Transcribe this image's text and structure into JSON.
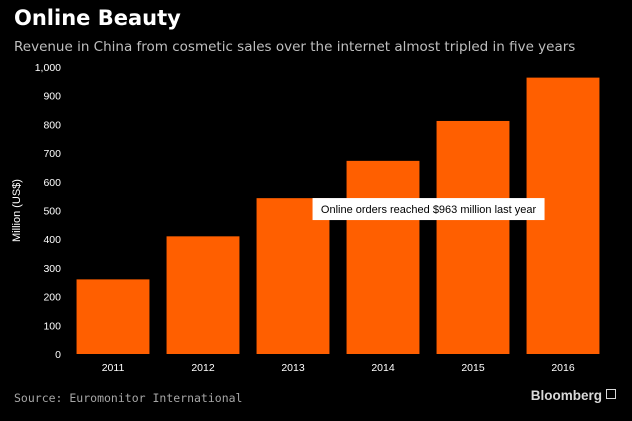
{
  "header": {
    "title": "Online Beauty",
    "subtitle": "Revenue in China from cosmetic sales over the internet almost tripled in five years"
  },
  "footer": {
    "source": "Source: Euromonitor International",
    "brand": "Bloomberg"
  },
  "colors": {
    "bar": "#ff5f00",
    "background": "#000000",
    "axis_text": "#ffffff"
  },
  "chart_data": {
    "type": "bar",
    "categories": [
      "2011",
      "2012",
      "2013",
      "2014",
      "2015",
      "2016"
    ],
    "values": [
      260,
      410,
      543,
      673,
      812,
      963
    ],
    "title": "Online Beauty",
    "subtitle": "Revenue in China from cosmetic sales over the internet almost tripled in five years",
    "xlabel": "",
    "ylabel": "Million (US$)",
    "ylim": [
      0,
      1000
    ],
    "yticks": [
      0,
      100,
      200,
      300,
      400,
      500,
      600,
      700,
      800,
      900,
      1000
    ],
    "ytick_labels": [
      "0",
      "100",
      "200",
      "300",
      "400",
      "500",
      "600",
      "700",
      "800",
      "900",
      "1,000"
    ],
    "grid": false,
    "legend": "none",
    "annotation": {
      "text": "Online orders reached $963 million last year",
      "category": "2016"
    }
  }
}
